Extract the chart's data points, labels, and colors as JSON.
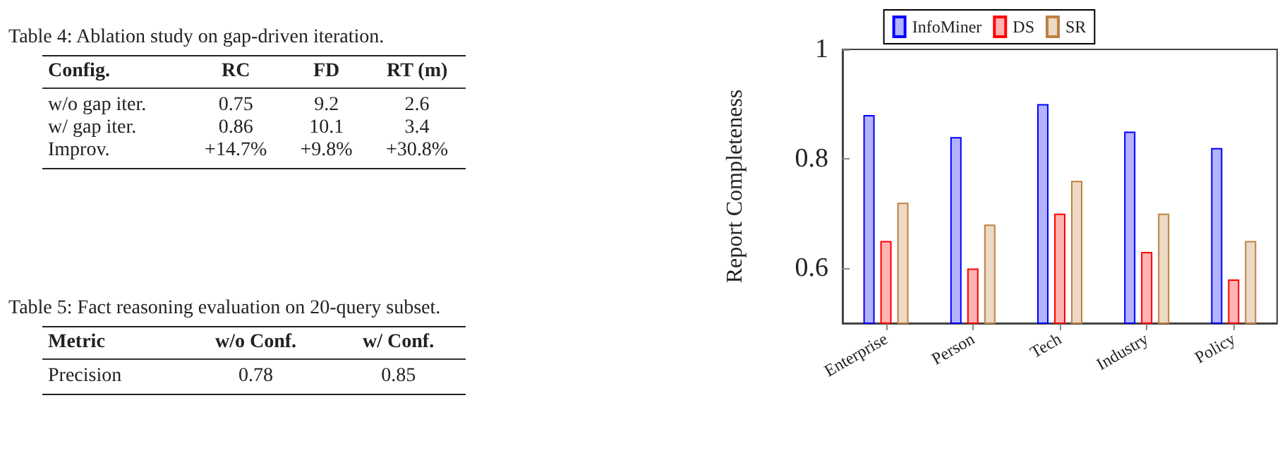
{
  "chart_data": [
    {
      "type": "other",
      "title": "Table 4: Ablation study on gap-driven iteration.",
      "categories": [
        "Config.",
        "RC",
        "FD",
        "RT (m)"
      ],
      "annotations": [
        "w/o gap iter.",
        "0.75",
        "9.2",
        "2.6",
        "w/ gap iter.",
        "0.86",
        "10.1",
        "3.4",
        "Improv.",
        "+14.7%",
        "+9.8%",
        "+30.8%"
      ]
    },
    {
      "type": "other",
      "title": "Table 5: Fact reasoning evaluation on 20-query subset.",
      "categories": [
        "Metric",
        "w/o Conf.",
        "w/ Conf."
      ],
      "annotations": [
        "Precision",
        "0.78",
        "0.85"
      ]
    },
    {
      "type": "bar",
      "ylabel": "Report Completeness",
      "categories": [
        "Enterprise",
        "Person",
        "Tech",
        "Industry",
        "Policy"
      ],
      "series": [
        {
          "name": "InfoMiner",
          "color": "#0000ff",
          "values": [
            0.88,
            0.84,
            0.9,
            0.85,
            0.82
          ]
        },
        {
          "name": "DS",
          "color": "#ff0000",
          "values": [
            0.65,
            0.6,
            0.7,
            0.63,
            0.58
          ]
        },
        {
          "name": "SR",
          "color": "#bf8040",
          "values": [
            0.72,
            0.68,
            0.76,
            0.7,
            0.65
          ]
        }
      ],
      "ylim": [
        0.5,
        1
      ],
      "yticks": [
        0.6,
        0.8,
        1
      ],
      "grid": false,
      "legend": "top"
    }
  ]
}
